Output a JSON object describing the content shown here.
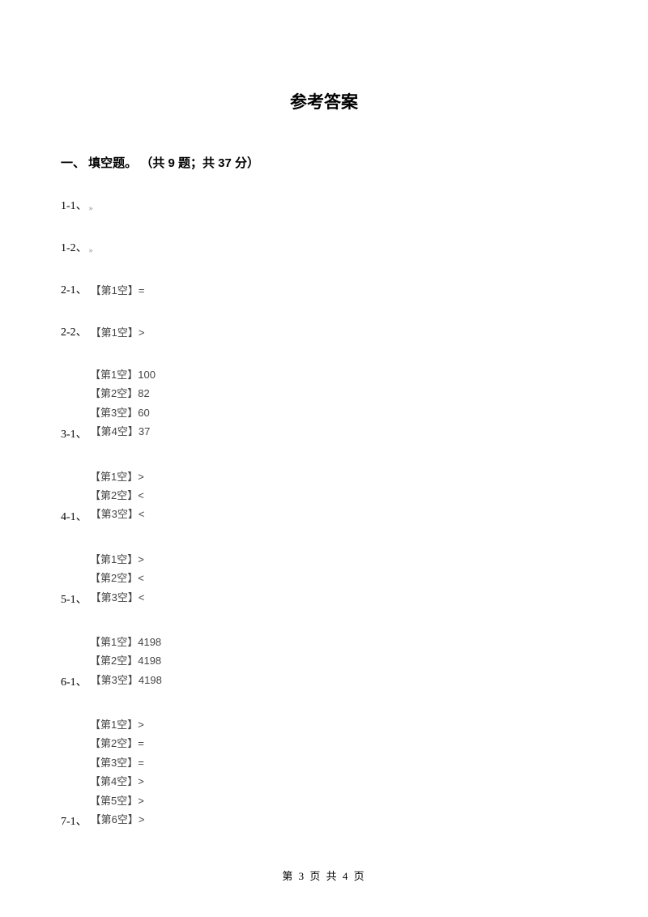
{
  "title": "参考答案",
  "section_header": "一、 填空题。 （共 9 题；共 37 分）",
  "answers": {
    "a1_1": {
      "label": "1-1、",
      "chevron": "»"
    },
    "a1_2": {
      "label": "1-2、",
      "chevron": "»"
    },
    "a2_1": {
      "label": "2-1、",
      "line1": "【第1空】="
    },
    "a2_2": {
      "label": "2-2、",
      "line1": "【第1空】>"
    },
    "a3_1": {
      "label": "3-1、",
      "line1": "【第1空】100",
      "line2": "【第2空】82",
      "line3": "【第3空】60",
      "line4": "【第4空】37"
    },
    "a4_1": {
      "label": "4-1、",
      "line1": "【第1空】>",
      "line2": "【第2空】<",
      "line3": "【第3空】<"
    },
    "a5_1": {
      "label": "5-1、",
      "line1": "【第1空】>",
      "line2": "【第2空】<",
      "line3": "【第3空】<"
    },
    "a6_1": {
      "label": "6-1、",
      "line1": "【第1空】4198",
      "line2": "【第2空】4198",
      "line3": "【第3空】4198"
    },
    "a7_1": {
      "label": "7-1、",
      "line1": "【第1空】>",
      "line2": "【第2空】=",
      "line3": "【第3空】=",
      "line4": "【第4空】>",
      "line5": "【第5空】>",
      "line6": "【第6空】>"
    }
  },
  "footer": "第 3 页 共 4 页"
}
